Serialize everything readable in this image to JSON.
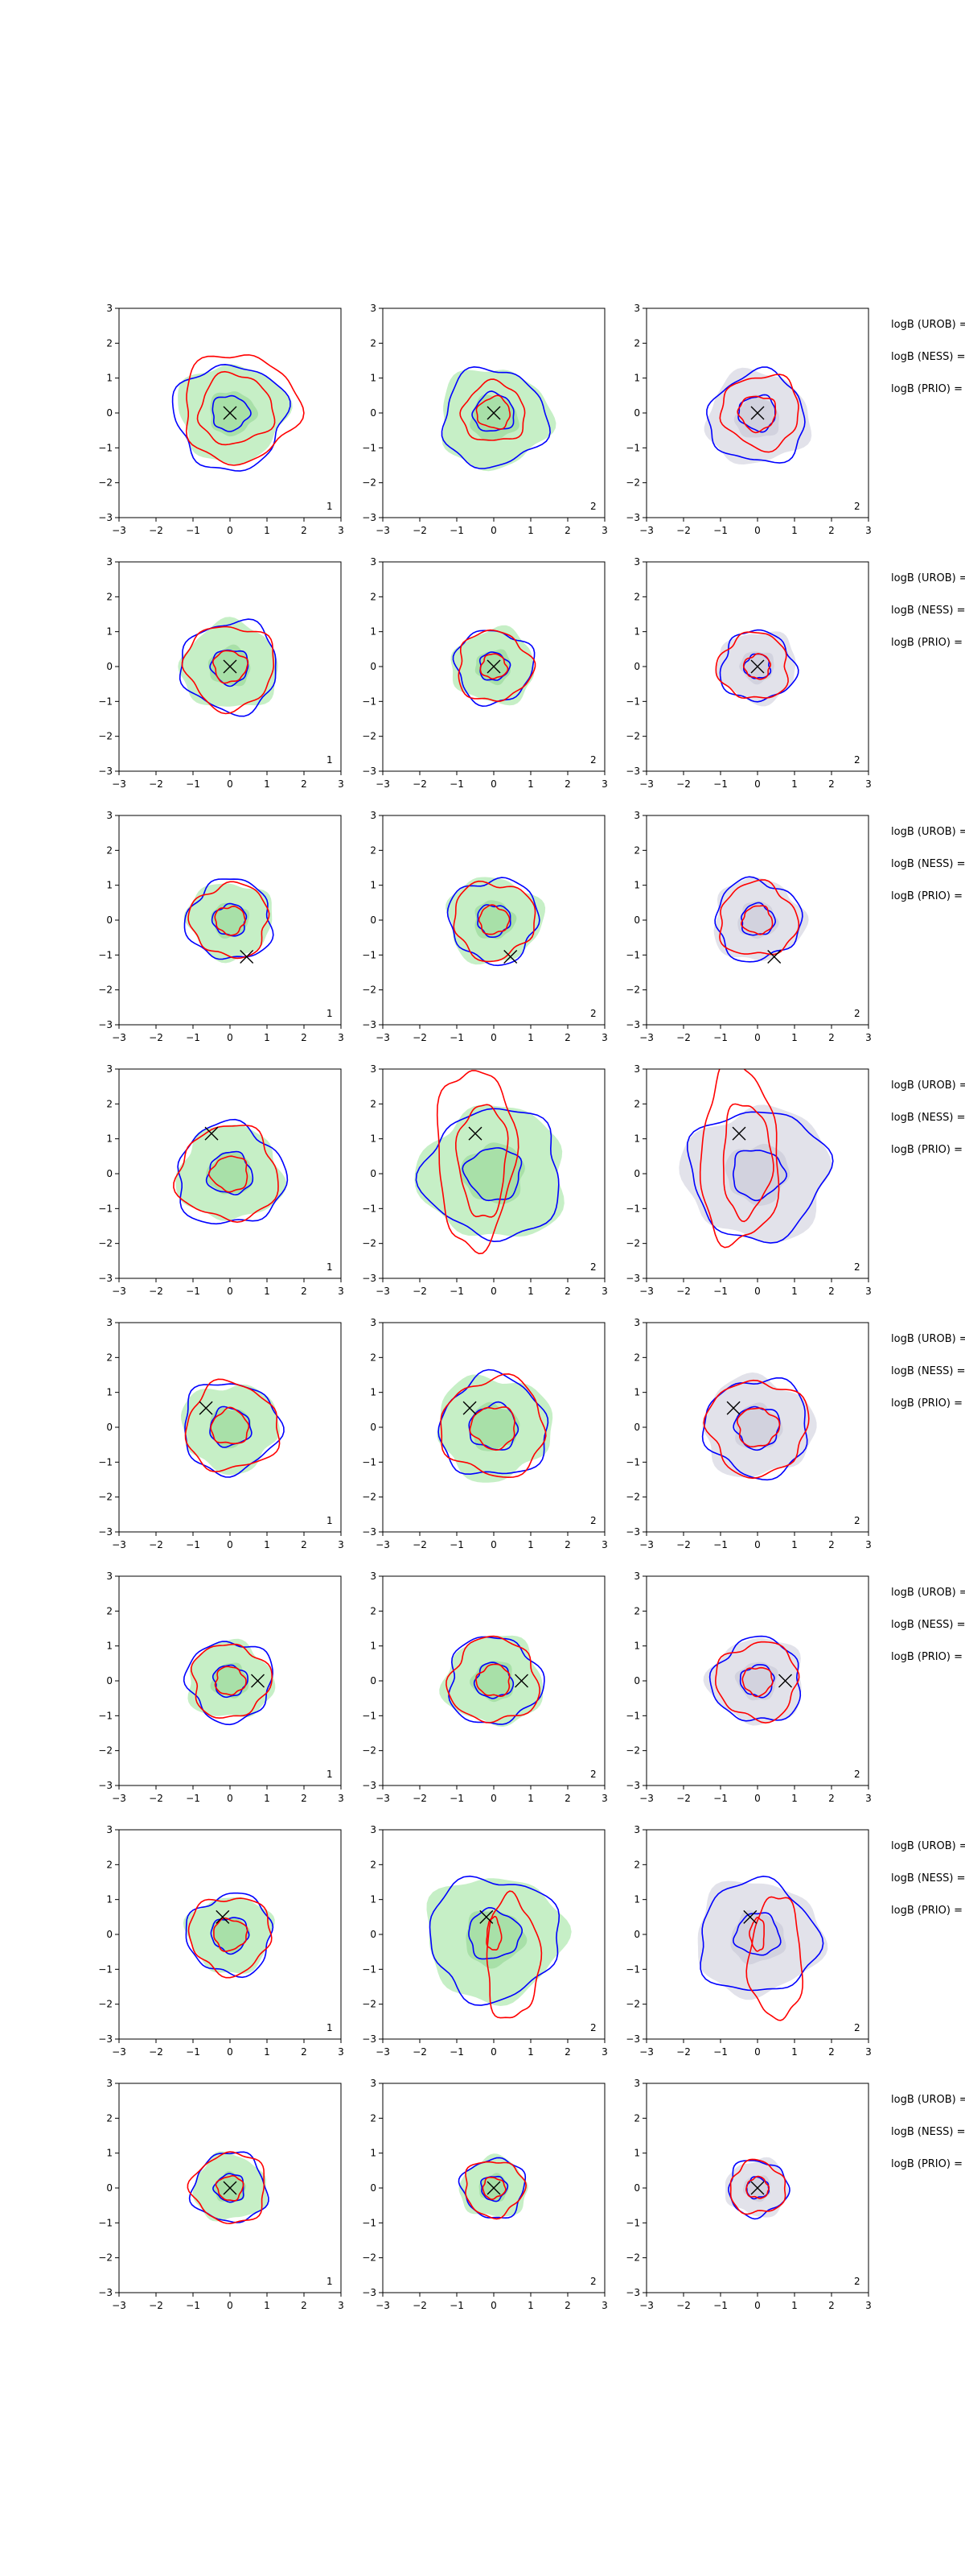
{
  "figure": {
    "columns": 3,
    "colors": {
      "blue_contour": "#0000ff",
      "red_contour": "#ff0000",
      "green_fill": "#c6efc6",
      "green_fill_inner": "#a8e0a8",
      "gray_fill": "#e2e2ea",
      "marker": "#000000"
    },
    "side_labels": [
      "logB (UROB) =",
      "logB (NESS) =",
      "logB (PRIO) ="
    ]
  },
  "chart_data": [
    {
      "type": "contour",
      "row": 1,
      "xlim": [
        -3,
        3
      ],
      "ylim": [
        -3,
        3
      ],
      "xticks": [
        -3,
        -2,
        -1,
        0,
        1,
        2,
        3
      ],
      "yticks": [
        -3,
        -2,
        -1,
        0,
        1,
        2,
        3
      ],
      "marker": {
        "x": 0.0,
        "y": 0.0
      },
      "panel_labels": [
        "1",
        "2",
        "2"
      ],
      "contours": {
        "blue": [
          {
            "cx": 0.0,
            "cy": -0.1,
            "r": 1.5
          },
          {
            "cx": 0.0,
            "cy": 0.0,
            "r": 0.5
          }
        ],
        "red": [
          {
            "cx": 0.25,
            "cy": 0.15,
            "r": 1.55
          },
          {
            "cx": 0.15,
            "cy": 0.1,
            "r": 1.0
          }
        ],
        "green": [
          {
            "cx": 0.05,
            "cy": 0.0,
            "r": 1.4
          }
        ],
        "blue_2": [
          {
            "cx": 0.0,
            "cy": -0.15,
            "r": 1.4
          },
          {
            "cx": 0.0,
            "cy": 0.0,
            "r": 0.55
          }
        ],
        "red_2": [
          {
            "cx": 0.0,
            "cy": 0.0,
            "r": 0.85
          },
          {
            "cx": 0.0,
            "cy": 0.0,
            "r": 0.45
          }
        ],
        "blue_3": [
          {
            "cx": 0.0,
            "cy": -0.15,
            "r": 1.3
          },
          {
            "cx": 0.0,
            "cy": 0.0,
            "r": 0.5
          }
        ],
        "red_3": [
          {
            "cx": 0.1,
            "cy": 0.05,
            "r": 1.05
          },
          {
            "cx": 0.0,
            "cy": 0.0,
            "r": 0.5
          }
        ]
      }
    },
    {
      "type": "contour",
      "row": 2,
      "xlim": [
        -3,
        3
      ],
      "ylim": [
        -3,
        3
      ],
      "xticks": [
        -3,
        -2,
        -1,
        0,
        1,
        2,
        3
      ],
      "yticks": [
        -3,
        -2,
        -1,
        0,
        1,
        2,
        3
      ],
      "marker": {
        "x": 0.0,
        "y": 0.0
      },
      "panel_labels": [
        "1",
        "2",
        "2"
      ],
      "contours": {
        "blue": [
          {
            "cx": 0.0,
            "cy": 0.0,
            "r": 1.3
          },
          {
            "cx": 0.0,
            "cy": 0.0,
            "r": 0.5
          }
        ],
        "red": [
          {
            "cx": 0.0,
            "cy": 0.0,
            "r": 1.2
          },
          {
            "cx": 0.0,
            "cy": 0.0,
            "r": 0.45
          }
        ],
        "green": [
          {
            "cx": 0.0,
            "cy": 0.0,
            "r": 1.25
          }
        ],
        "blue_2": [
          {
            "cx": 0.0,
            "cy": 0.0,
            "r": 1.05
          },
          {
            "cx": 0.0,
            "cy": 0.0,
            "r": 0.4
          }
        ],
        "red_2": [
          {
            "cx": 0.0,
            "cy": 0.0,
            "r": 1.0
          },
          {
            "cx": 0.0,
            "cy": 0.0,
            "r": 0.35
          }
        ],
        "blue_3": [
          {
            "cx": 0.0,
            "cy": 0.0,
            "r": 1.0
          },
          {
            "cx": 0.0,
            "cy": 0.0,
            "r": 0.35
          }
        ],
        "red_3": [
          {
            "cx": -0.1,
            "cy": 0.0,
            "r": 0.95
          },
          {
            "cx": 0.0,
            "cy": 0.0,
            "r": 0.35
          }
        ]
      }
    },
    {
      "type": "contour",
      "row": 3,
      "xlim": [
        -3,
        3
      ],
      "ylim": [
        -3,
        3
      ],
      "xticks": [
        -3,
        -2,
        -1,
        0,
        1,
        2,
        3
      ],
      "yticks": [
        -3,
        -2,
        -1,
        0,
        1,
        2,
        3
      ],
      "marker": {
        "x": 0.45,
        "y": -1.05
      },
      "panel_labels": [
        "1",
        "2",
        "2"
      ],
      "contours": {
        "blue": [
          {
            "cx": 0.0,
            "cy": 0.0,
            "r": 1.15
          },
          {
            "cx": 0.0,
            "cy": 0.0,
            "r": 0.45
          }
        ],
        "red": [
          {
            "cx": 0.0,
            "cy": 0.0,
            "r": 1.05
          },
          {
            "cx": 0.0,
            "cy": 0.0,
            "r": 0.4
          }
        ],
        "green": [
          {
            "cx": 0.0,
            "cy": 0.0,
            "r": 1.1
          }
        ],
        "blue_2": [
          {
            "cx": 0.0,
            "cy": 0.0,
            "r": 1.2
          },
          {
            "cx": 0.0,
            "cy": 0.0,
            "r": 0.45
          }
        ],
        "red_2": [
          {
            "cx": 0.0,
            "cy": 0.0,
            "r": 1.1
          },
          {
            "cx": 0.0,
            "cy": 0.0,
            "r": 0.4
          }
        ],
        "blue_3": [
          {
            "cx": 0.0,
            "cy": 0.0,
            "r": 1.15
          },
          {
            "cx": 0.0,
            "cy": 0.0,
            "r": 0.45
          }
        ],
        "red_3": [
          {
            "cx": 0.0,
            "cy": 0.0,
            "r": 1.05
          },
          {
            "cx": 0.0,
            "cy": 0.0,
            "r": 0.4
          }
        ]
      }
    },
    {
      "type": "contour",
      "row": 4,
      "xlim": [
        -3,
        3
      ],
      "ylim": [
        -3,
        3
      ],
      "xticks": [
        -3,
        -2,
        -1,
        0,
        1,
        2,
        3
      ],
      "yticks": [
        -3,
        -2,
        -1,
        0,
        1,
        2,
        3
      ],
      "marker": {
        "x": -0.5,
        "y": 1.15
      },
      "panel_labels": [
        "1",
        "2",
        "2"
      ],
      "contours": {
        "blue": [
          {
            "cx": 0.0,
            "cy": -0.05,
            "r": 1.45
          },
          {
            "cx": 0.0,
            "cy": 0.0,
            "r": 0.6
          }
        ],
        "red": [
          {
            "cx": -0.05,
            "cy": 0.0,
            "r": 1.35
          },
          {
            "cx": 0.0,
            "cy": 0.0,
            "r": 0.5
          }
        ],
        "green": [
          {
            "cx": 0.0,
            "cy": 0.0,
            "r": 1.35
          }
        ],
        "blue_2": [
          {
            "cx": 0.0,
            "cy": 0.0,
            "r": 1.85
          },
          {
            "cx": 0.0,
            "cy": 0.0,
            "r": 0.75
          }
        ],
        "red_2": [
          {
            "cx": -0.3,
            "cy": 0.4,
            "r": 1.2
          },
          {
            "cx": -0.5,
            "cy": 0.5,
            "r": 1.9
          }
        ],
        "blue_3": [
          {
            "cx": 0.0,
            "cy": 0.0,
            "r": 1.85
          },
          {
            "cx": 0.0,
            "cy": 0.0,
            "r": 0.7
          }
        ],
        "red_3": [
          {
            "cx": -0.3,
            "cy": 0.4,
            "r": 1.2
          },
          {
            "cx": -0.5,
            "cy": 0.5,
            "r": 1.9
          }
        ]
      }
    },
    {
      "type": "contour",
      "row": 5,
      "xlim": [
        -3,
        3
      ],
      "ylim": [
        -3,
        3
      ],
      "xticks": [
        -3,
        -2,
        -1,
        0,
        1,
        2,
        3
      ],
      "yticks": [
        -3,
        -2,
        -1,
        0,
        1,
        2,
        3
      ],
      "marker": {
        "x": -0.65,
        "y": 0.55
      },
      "panel_labels": [
        "1",
        "2",
        "2"
      ],
      "contours": {
        "blue": [
          {
            "cx": 0.0,
            "cy": 0.0,
            "r": 1.3
          },
          {
            "cx": 0.0,
            "cy": 0.0,
            "r": 0.55
          }
        ],
        "red": [
          {
            "cx": 0.05,
            "cy": 0.0,
            "r": 1.25
          },
          {
            "cx": 0.0,
            "cy": 0.0,
            "r": 0.5
          }
        ],
        "green": [
          {
            "cx": 0.0,
            "cy": 0.0,
            "r": 1.25
          }
        ],
        "blue_2": [
          {
            "cx": 0.0,
            "cy": 0.0,
            "r": 1.45
          },
          {
            "cx": 0.0,
            "cy": 0.0,
            "r": 0.65
          }
        ],
        "red_2": [
          {
            "cx": 0.0,
            "cy": 0.0,
            "r": 1.4
          },
          {
            "cx": 0.0,
            "cy": 0.0,
            "r": 0.6
          }
        ],
        "blue_3": [
          {
            "cx": 0.0,
            "cy": 0.0,
            "r": 1.4
          },
          {
            "cx": 0.0,
            "cy": 0.0,
            "r": 0.6
          }
        ],
        "red_3": [
          {
            "cx": 0.0,
            "cy": 0.0,
            "r": 1.35
          },
          {
            "cx": 0.0,
            "cy": 0.0,
            "r": 0.55
          }
        ]
      }
    },
    {
      "type": "contour",
      "row": 6,
      "xlim": [
        -3,
        3
      ],
      "ylim": [
        -3,
        3
      ],
      "xticks": [
        -3,
        -2,
        -1,
        0,
        1,
        2,
        3
      ],
      "yticks": [
        -3,
        -2,
        -1,
        0,
        1,
        2,
        3
      ],
      "marker": {
        "x": 0.75,
        "y": 0.0
      },
      "panel_labels": [
        "1",
        "2",
        "2"
      ],
      "contours": {
        "blue": [
          {
            "cx": 0.0,
            "cy": 0.0,
            "r": 1.15
          },
          {
            "cx": 0.0,
            "cy": 0.0,
            "r": 0.45
          }
        ],
        "red": [
          {
            "cx": 0.0,
            "cy": 0.0,
            "r": 1.05
          },
          {
            "cx": 0.0,
            "cy": 0.0,
            "r": 0.4
          }
        ],
        "green": [
          {
            "cx": 0.0,
            "cy": 0.0,
            "r": 1.1
          }
        ],
        "blue_2": [
          {
            "cx": 0.0,
            "cy": 0.0,
            "r": 1.25
          },
          {
            "cx": 0.0,
            "cy": 0.0,
            "r": 0.5
          }
        ],
        "red_2": [
          {
            "cx": 0.0,
            "cy": 0.0,
            "r": 1.2
          },
          {
            "cx": 0.0,
            "cy": 0.0,
            "r": 0.45
          }
        ],
        "blue_3": [
          {
            "cx": 0.0,
            "cy": 0.0,
            "r": 1.2
          },
          {
            "cx": 0.0,
            "cy": 0.0,
            "r": 0.45
          }
        ],
        "red_3": [
          {
            "cx": 0.0,
            "cy": 0.0,
            "r": 1.1
          },
          {
            "cx": 0.0,
            "cy": 0.0,
            "r": 0.4
          }
        ]
      }
    },
    {
      "type": "contour",
      "row": 7,
      "xlim": [
        -3,
        3
      ],
      "ylim": [
        -3,
        3
      ],
      "xticks": [
        -3,
        -2,
        -1,
        0,
        1,
        2,
        3
      ],
      "yticks": [
        -3,
        -2,
        -1,
        0,
        1,
        2,
        3
      ],
      "marker": {
        "x": -0.2,
        "y": 0.5
      },
      "panel_labels": [
        "1",
        "2",
        "2"
      ],
      "contours": {
        "blue": [
          {
            "cx": 0.0,
            "cy": 0.0,
            "r": 1.15
          },
          {
            "cx": 0.0,
            "cy": 0.0,
            "r": 0.5
          }
        ],
        "red": [
          {
            "cx": 0.0,
            "cy": 0.0,
            "r": 1.1
          },
          {
            "cx": 0.0,
            "cy": 0.0,
            "r": 0.45
          }
        ],
        "green": [
          {
            "cx": 0.0,
            "cy": 0.0,
            "r": 1.1
          }
        ],
        "blue_2": [
          {
            "cx": 0.0,
            "cy": -0.1,
            "r": 1.75
          },
          {
            "cx": 0.0,
            "cy": 0.0,
            "r": 0.7
          }
        ],
        "red_2": [
          {
            "cx": 0.5,
            "cy": -0.7,
            "r": 1.3
          },
          {
            "cx": 0.0,
            "cy": 0.0,
            "r": 0.35
          }
        ],
        "blue_3": [
          {
            "cx": 0.0,
            "cy": -0.1,
            "r": 1.6
          },
          {
            "cx": 0.0,
            "cy": 0.0,
            "r": 0.6
          }
        ],
        "red_3": [
          {
            "cx": 0.5,
            "cy": -0.7,
            "r": 1.3
          },
          {
            "cx": 0.0,
            "cy": 0.0,
            "r": 0.35
          }
        ]
      }
    },
    {
      "type": "contour",
      "row": 8,
      "xlim": [
        -3,
        3
      ],
      "ylim": [
        -3,
        3
      ],
      "xticks": [
        -3,
        -2,
        -1,
        0,
        1,
        2,
        3
      ],
      "yticks": [
        -3,
        -2,
        -1,
        0,
        1,
        2,
        3
      ],
      "marker": {
        "x": 0.0,
        "y": 0.0
      },
      "panel_labels": [
        "1",
        "2",
        "2"
      ],
      "contours": {
        "blue": [
          {
            "cx": 0.0,
            "cy": 0.0,
            "r": 1.0
          },
          {
            "cx": 0.0,
            "cy": 0.0,
            "r": 0.4
          }
        ],
        "red": [
          {
            "cx": 0.0,
            "cy": 0.0,
            "r": 1.0
          },
          {
            "cx": 0.0,
            "cy": 0.0,
            "r": 0.35
          }
        ],
        "green": [
          {
            "cx": 0.0,
            "cy": 0.0,
            "r": 0.95
          }
        ],
        "blue_2": [
          {
            "cx": 0.0,
            "cy": 0.0,
            "r": 0.85
          },
          {
            "cx": 0.0,
            "cy": 0.0,
            "r": 0.35
          }
        ],
        "red_2": [
          {
            "cx": 0.0,
            "cy": 0.0,
            "r": 0.8
          },
          {
            "cx": 0.0,
            "cy": 0.0,
            "r": 0.3
          }
        ],
        "blue_3": [
          {
            "cx": 0.0,
            "cy": 0.0,
            "r": 0.8
          },
          {
            "cx": 0.0,
            "cy": 0.0,
            "r": 0.3
          }
        ],
        "red_3": [
          {
            "cx": 0.0,
            "cy": 0.0,
            "r": 0.75
          },
          {
            "cx": 0.0,
            "cy": 0.0,
            "r": 0.3
          }
        ]
      }
    }
  ]
}
